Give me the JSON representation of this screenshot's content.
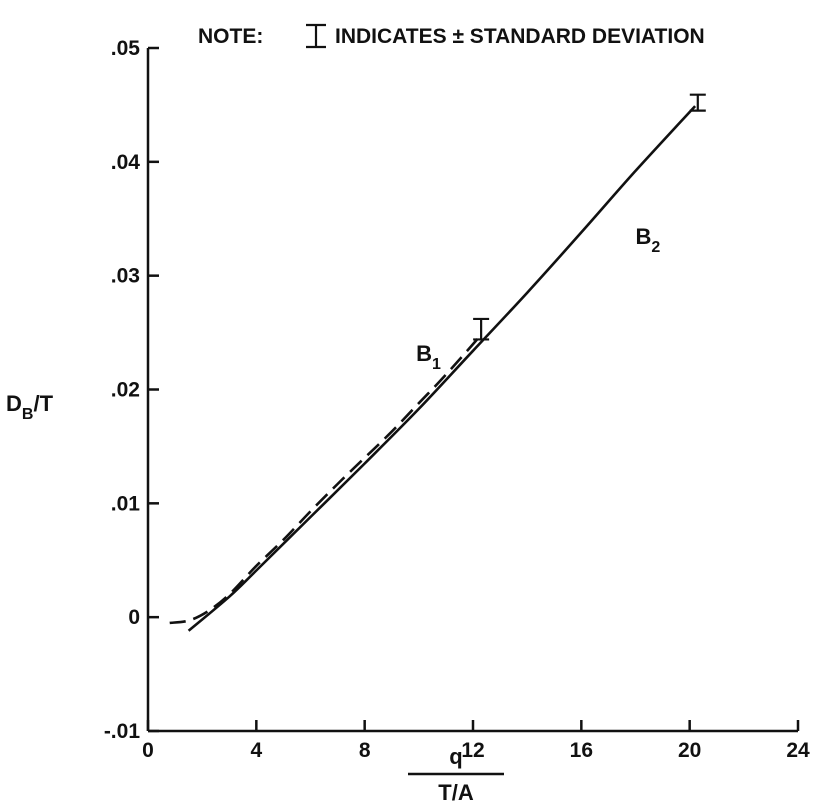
{
  "chart_data": {
    "type": "line",
    "note": {
      "prefix": "NOTE:",
      "text": "INDICATES ± STANDARD DEVIATION"
    },
    "ylabel": {
      "main": "D",
      "sub": "B",
      "rest": "/T"
    },
    "xlabel": {
      "numerator": "q",
      "denominator": "T/A"
    },
    "xlim": [
      0,
      24
    ],
    "ylim": [
      -0.01,
      0.05
    ],
    "x_ticks": [
      {
        "value": 0,
        "label": "0"
      },
      {
        "value": 4,
        "label": "4"
      },
      {
        "value": 8,
        "label": "8"
      },
      {
        "value": 12,
        "label": "12"
      },
      {
        "value": 16,
        "label": "16"
      },
      {
        "value": 20,
        "label": "20"
      },
      {
        "value": 24,
        "label": "24"
      }
    ],
    "y_ticks": [
      {
        "value": -0.01,
        "label": "-.01"
      },
      {
        "value": 0,
        "label": "0"
      },
      {
        "value": 0.01,
        "label": ".01"
      },
      {
        "value": 0.02,
        "label": ".02"
      },
      {
        "value": 0.03,
        "label": ".03"
      },
      {
        "value": 0.04,
        "label": ".04"
      },
      {
        "value": 0.05,
        "label": ".05"
      }
    ],
    "series": [
      {
        "label": "B",
        "label_sub": "1",
        "style": "dashed",
        "points": [
          [
            0.8,
            -0.0005
          ],
          [
            1.5,
            -0.0003
          ],
          [
            2.2,
            0.0005
          ],
          [
            3.0,
            0.002
          ],
          [
            4.0,
            0.0045
          ],
          [
            5.0,
            0.0068
          ],
          [
            6.0,
            0.0093
          ],
          [
            7.0,
            0.0117
          ],
          [
            8.0,
            0.014
          ],
          [
            9.0,
            0.0163
          ],
          [
            10.0,
            0.0188
          ],
          [
            11.0,
            0.0213
          ],
          [
            12.3,
            0.0248
          ]
        ],
        "error_bar": {
          "x": 12.3,
          "y": 0.0253,
          "sd": 0.0009
        },
        "label_at": {
          "x": 9.9,
          "y": 0.0225
        }
      },
      {
        "label": "B",
        "label_sub": "2",
        "style": "solid",
        "points": [
          [
            1.5,
            -0.0012
          ],
          [
            3.0,
            0.0018
          ],
          [
            4.0,
            0.0041
          ],
          [
            6.0,
            0.0088
          ],
          [
            8.0,
            0.0135
          ],
          [
            10.0,
            0.0183
          ],
          [
            12.0,
            0.0234
          ],
          [
            14.0,
            0.0285
          ],
          [
            16.0,
            0.0338
          ],
          [
            18.0,
            0.0392
          ],
          [
            20.2,
            0.0449
          ]
        ],
        "error_bar": {
          "x": 20.3,
          "y": 0.0452,
          "sd": 0.0007
        },
        "label_at": {
          "x": 18.0,
          "y": 0.0328
        }
      }
    ],
    "grid": false
  }
}
